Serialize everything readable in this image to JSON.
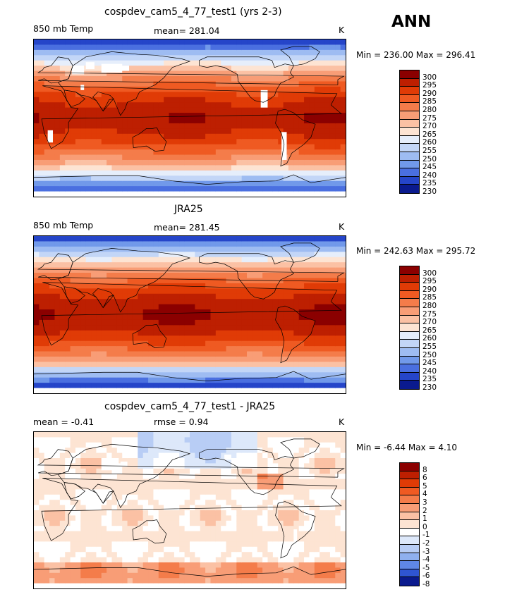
{
  "season": "ANN",
  "panels": [
    {
      "title": "cospdev_cam5_4_77_test1 (yrs 2-3)",
      "left_label": "850 mb Temp",
      "center_label": "mean= 281.04",
      "units": "K",
      "minmax": "Min = 236.00 Max = 296.41",
      "field": "model",
      "colorbar": {
        "levels": [
          "300",
          "295",
          "290",
          "285",
          "280",
          "275",
          "270",
          "265",
          "260",
          "255",
          "250",
          "245",
          "240",
          "235",
          "230"
        ],
        "colors": [
          "#8b0000",
          "#bd1f01",
          "#e03b06",
          "#ef5a22",
          "#f47c4a",
          "#f89d76",
          "#fbc1a4",
          "#fde4d3",
          "#e6eefb",
          "#c3d6f7",
          "#9ebcf2",
          "#7199ea",
          "#4a6fe0",
          "#2545c9",
          "#0a1a8e"
        ]
      }
    },
    {
      "title": "JRA25",
      "left_label": "850 mb Temp",
      "center_label": "mean= 281.45",
      "units": "K",
      "minmax": "Min = 242.63 Max = 295.72",
      "field": "obs",
      "colorbar": {
        "levels": [
          "300",
          "295",
          "290",
          "285",
          "280",
          "275",
          "270",
          "265",
          "260",
          "255",
          "250",
          "245",
          "240",
          "235",
          "230"
        ],
        "colors": [
          "#8b0000",
          "#bd1f01",
          "#e03b06",
          "#ef5a22",
          "#f47c4a",
          "#f89d76",
          "#fbc1a4",
          "#fde4d3",
          "#e6eefb",
          "#c3d6f7",
          "#9ebcf2",
          "#7199ea",
          "#4a6fe0",
          "#2545c9",
          "#0a1a8e"
        ]
      }
    },
    {
      "title": "cospdev_cam5_4_77_test1 - JRA25",
      "left_label": "mean =   -0.41",
      "center_label": "rmse =    0.94",
      "units": "K",
      "minmax": "Min =   -6.44 Max =    4.10",
      "field": "diff",
      "colorbar": {
        "levels": [
          "8",
          "6",
          "5",
          "4",
          "3",
          "2",
          "1",
          "0",
          "-1",
          "-2",
          "-3",
          "-4",
          "-5",
          "-6",
          "-8"
        ],
        "colors": [
          "#8b0000",
          "#bd1f01",
          "#e03b06",
          "#ef5a22",
          "#f47c4a",
          "#f89d76",
          "#fbc1a4",
          "#fde4d3",
          "#ffffff",
          "#dde8fa",
          "#b8cdf5",
          "#8fb0ef",
          "#5f87e6",
          "#2f55d2",
          "#0a1a8e"
        ]
      }
    }
  ]
}
